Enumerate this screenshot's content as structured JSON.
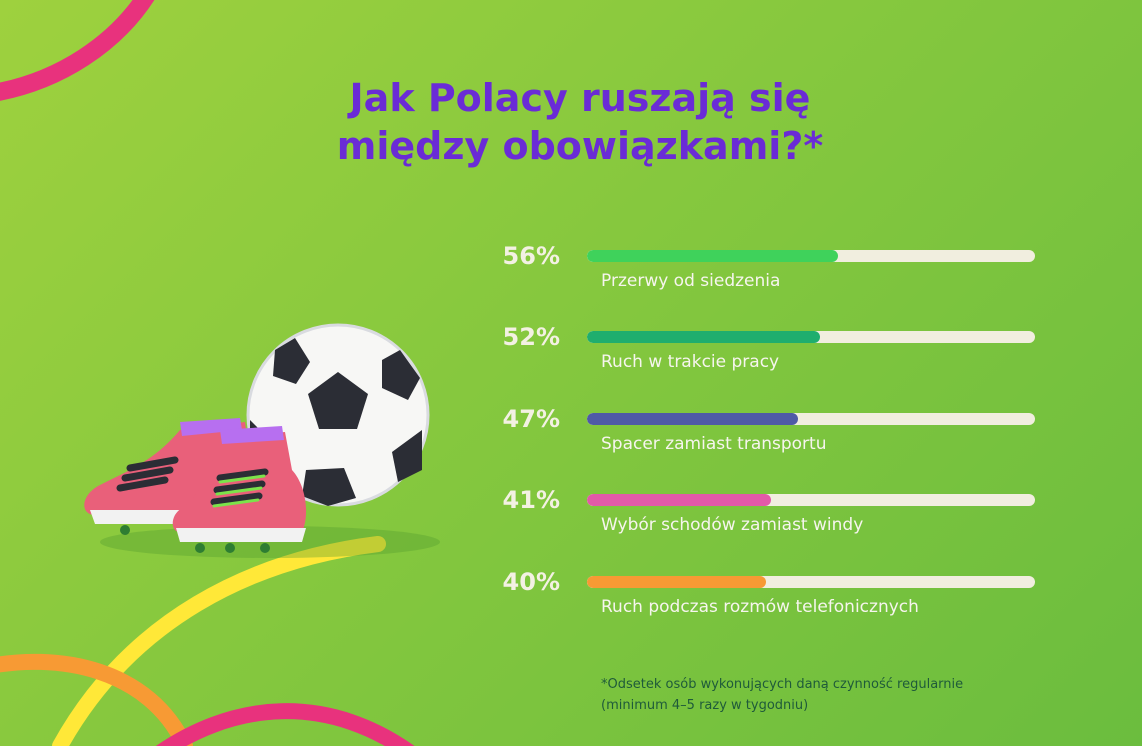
{
  "title": {
    "line1": "Jak Polacy ruszają się",
    "line2": "między obowiązkami?*"
  },
  "chart_data": {
    "type": "bar",
    "orientation": "horizontal",
    "unit": "%",
    "xlim": [
      0,
      100
    ],
    "categories": [
      "Przerwy od siedzenia",
      "Ruch w trakcie pracy",
      "Spacer zamiast transportu",
      "Wybór schodów zamiast windy",
      "Ruch podczas rozmów telefonicznych"
    ],
    "values": [
      56,
      52,
      47,
      41,
      40
    ],
    "value_labels": [
      "56%",
      "52%",
      "47%",
      "41%",
      "40%"
    ],
    "colors": [
      "#3fd25b",
      "#1fae6e",
      "#4f5aa6",
      "#e25aa8",
      "#f79a34"
    ],
    "track_color": "#f1eedf"
  },
  "footnote": {
    "line1": "*Odsetek osób wykonujących daną czynność regularnie",
    "line2": "(minimum 4–5 razy w tygodniu)"
  },
  "illustration": {
    "icons": [
      "soccer-ball-icon",
      "football-boots-icon"
    ]
  }
}
